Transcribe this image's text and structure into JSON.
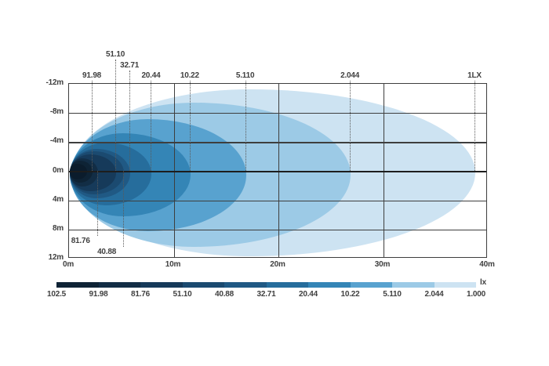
{
  "chart_data": {
    "type": "heatmap",
    "subtype": "isolux-beam-pattern",
    "title": "",
    "unit_label": "lx",
    "x_axis": {
      "label": "",
      "range_m": [
        0,
        40
      ],
      "ticks_m": [
        0,
        10,
        20,
        30,
        40
      ],
      "tick_labels": [
        "0m",
        "10m",
        "20m",
        "30m",
        "40m"
      ],
      "gridlines_m": [
        10,
        20,
        30
      ]
    },
    "y_axis": {
      "label": "",
      "range_m": [
        -12,
        12
      ],
      "ticks_m": [
        -12,
        -8,
        -4,
        0,
        4,
        8,
        12
      ],
      "tick_labels": [
        "-12m",
        "-8m",
        "-4m",
        "0m",
        "4m",
        "8m",
        "12m"
      ],
      "gridlines_m": [
        -8,
        -4,
        4,
        8
      ],
      "centerline_m": 0
    },
    "grid": true,
    "contours": [
      {
        "lux": "1.000",
        "reach_m": 38.8,
        "left_m": 0.3,
        "half_height_m": 11.5,
        "center_offset_m": 0.2,
        "color": "#cde3f2"
      },
      {
        "lux": "2.044",
        "reach_m": 26.9,
        "left_m": 0.2,
        "half_height_m": 9.9,
        "center_offset_m": 0.5,
        "color": "#9ccae6"
      },
      {
        "lux": "5.110",
        "reach_m": 16.9,
        "left_m": 0.15,
        "half_height_m": 7.7,
        "center_offset_m": 0.5,
        "color": "#58a2cf"
      },
      {
        "lux": "10.22",
        "reach_m": 11.6,
        "left_m": 0.1,
        "half_height_m": 5.7,
        "center_offset_m": 0.45,
        "color": "#3485b6"
      },
      {
        "lux": "20.44",
        "reach_m": 7.9,
        "left_m": 0.1,
        "half_height_m": 4.3,
        "center_offset_m": 0.35,
        "color": "#266d9c"
      },
      {
        "lux": "32.71",
        "reach_m": 5.85,
        "left_m": 0.08,
        "half_height_m": 3.4,
        "center_offset_m": 0.3,
        "color": "#205984"
      },
      {
        "lux": "40.88",
        "reach_m": 5.25,
        "left_m": 0.08,
        "half_height_m": 2.95,
        "center_offset_m": 0.25,
        "color": "#1b4a70"
      },
      {
        "lux": "51.10",
        "reach_m": 4.5,
        "left_m": 0.05,
        "half_height_m": 2.5,
        "center_offset_m": 0.2,
        "color": "#163a5a"
      },
      {
        "lux": "81.76",
        "reach_m": 2.75,
        "left_m": 0.05,
        "half_height_m": 1.95,
        "center_offset_m": 0.15,
        "color": "#122d45"
      },
      {
        "lux": "91.98",
        "reach_m": 2.25,
        "left_m": 0.05,
        "half_height_m": 1.5,
        "center_offset_m": 0.1,
        "color": "#0e2335"
      },
      {
        "lux": "102.5",
        "reach_m": 1.7,
        "left_m": 0.05,
        "half_height_m": 1.05,
        "center_offset_m": 0.05,
        "color": "#0b1c2c"
      }
    ],
    "top_markers": [
      {
        "label": "91.98",
        "x_m": 2.25,
        "row": 2
      },
      {
        "label": "51.10",
        "x_m": 4.5,
        "row": 0
      },
      {
        "label": "32.71",
        "x_m": 5.85,
        "row": 1
      },
      {
        "label": "20.44",
        "x_m": 7.9,
        "row": 2
      },
      {
        "label": "10.22",
        "x_m": 11.6,
        "row": 2
      },
      {
        "label": "5.110",
        "x_m": 16.9,
        "row": 2
      },
      {
        "label": "2.044",
        "x_m": 26.9,
        "row": 2
      },
      {
        "label": "1LX",
        "x_m": 38.8,
        "row": 2
      }
    ],
    "bottom_markers": [
      {
        "label": "81.76",
        "x_m": 2.75,
        "label_row": 0
      },
      {
        "label": "40.88",
        "x_m": 5.25,
        "label_row": 1
      }
    ],
    "legend": {
      "labels": [
        "102.5",
        "91.98",
        "81.76",
        "51.10",
        "40.88",
        "32.71",
        "20.44",
        "10.22",
        "5.110",
        "2.044",
        "1.000"
      ],
      "segment_colors": [
        "#0e2335",
        "#122d45",
        "#163a5a",
        "#1b4a70",
        "#205984",
        "#266d9c",
        "#3485b6",
        "#58a2cf",
        "#9ccae6",
        "#cde3f2"
      ],
      "unit_label": "lx"
    },
    "origin_marker": {
      "x_m": 1.6,
      "y_m": 0,
      "color": "#ffffff",
      "shape": "arrow-right"
    }
  }
}
